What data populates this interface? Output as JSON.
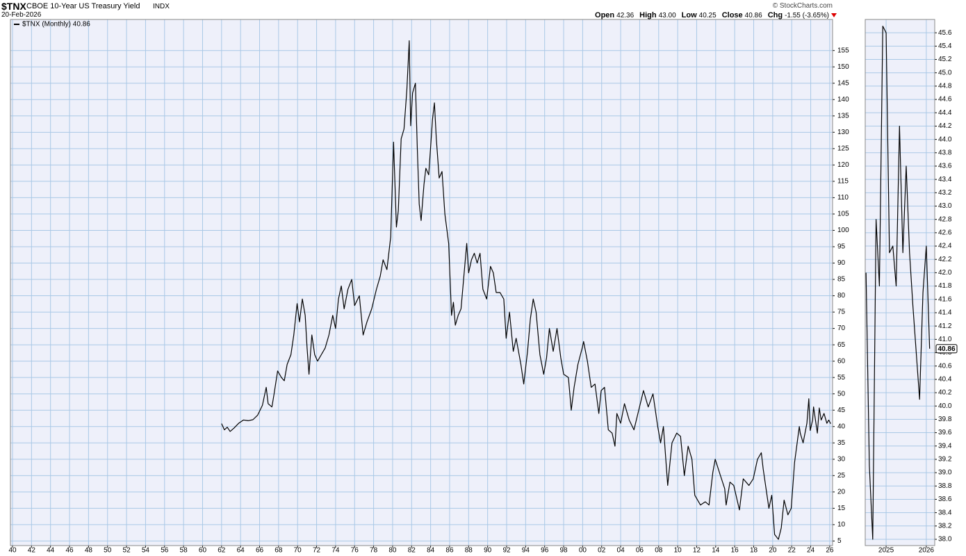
{
  "header": {
    "symbol": "$TNX",
    "name": "CBOE 10-Year US Treasury Yield",
    "exchange": "INDX",
    "date": "20-Feb-2026",
    "source": "© StockCharts.com",
    "stats": [
      {
        "label": "Open",
        "value": "42.36"
      },
      {
        "label": "High",
        "value": "43.00"
      },
      {
        "label": "Low",
        "value": "40.25"
      },
      {
        "label": "Close",
        "value": "40.86"
      },
      {
        "label": "Chg",
        "value": "-1.55 (-3.65%)"
      }
    ]
  },
  "chart_data": [
    {
      "type": "line",
      "legend": "upper left",
      "grid": true,
      "background": "#eef0fa",
      "x": [
        1962.0,
        1962.3,
        1962.6,
        1962.9,
        1963.3,
        1963.8,
        1964.3,
        1964.8,
        1965.3,
        1965.8,
        1966.3,
        1966.7,
        1966.9,
        1967.3,
        1967.5,
        1967.9,
        1968.3,
        1968.6,
        1968.9,
        1969.3,
        1969.6,
        1969.95,
        1970.2,
        1970.5,
        1970.8,
        1971.0,
        1971.2,
        1971.5,
        1971.8,
        1972.1,
        1972.5,
        1972.9,
        1973.3,
        1973.7,
        1974.0,
        1974.3,
        1974.6,
        1974.9,
        1975.3,
        1975.7,
        1976.0,
        1976.5,
        1976.9,
        1977.3,
        1977.8,
        1978.3,
        1978.7,
        1979.0,
        1979.4,
        1979.8,
        1980.1,
        1980.4,
        1980.6,
        1980.9,
        1981.2,
        1981.5,
        1981.75,
        1981.9,
        1982.1,
        1982.4,
        1982.6,
        1982.8,
        1983.0,
        1983.3,
        1983.5,
        1983.8,
        1984.2,
        1984.4,
        1984.6,
        1984.9,
        1985.2,
        1985.5,
        1985.9,
        1986.2,
        1986.4,
        1986.6,
        1986.9,
        1987.2,
        1987.5,
        1987.8,
        1988.0,
        1988.3,
        1988.6,
        1988.9,
        1989.2,
        1989.5,
        1989.9,
        1990.3,
        1990.6,
        1990.9,
        1991.3,
        1991.7,
        1991.95,
        1992.3,
        1992.7,
        1993.0,
        1993.5,
        1993.8,
        1994.2,
        1994.5,
        1994.8,
        1995.1,
        1995.5,
        1995.9,
        1996.2,
        1996.5,
        1996.9,
        1997.3,
        1997.7,
        1998.0,
        1998.5,
        1998.8,
        1999.1,
        1999.5,
        1999.95,
        2000.1,
        2000.5,
        2000.9,
        2001.3,
        2001.7,
        2001.95,
        2002.3,
        2002.7,
        2003.1,
        2003.4,
        2003.6,
        2004.0,
        2004.4,
        2004.9,
        2005.4,
        2005.9,
        2006.4,
        2006.9,
        2007.4,
        2007.9,
        2008.2,
        2008.5,
        2008.95,
        2009.4,
        2009.9,
        2010.3,
        2010.7,
        2011.1,
        2011.5,
        2011.8,
        2012.4,
        2012.9,
        2013.3,
        2013.7,
        2013.95,
        2014.5,
        2014.95,
        2015.1,
        2015.5,
        2015.9,
        2016.5,
        2016.9,
        2017.5,
        2017.95,
        2018.4,
        2018.8,
        2019.0,
        2019.6,
        2019.9,
        2020.2,
        2020.6,
        2020.9,
        2021.2,
        2021.6,
        2021.95,
        2022.3,
        2022.8,
        2022.9,
        2023.2,
        2023.6,
        2023.8,
        2023.95,
        2024.2,
        2024.3,
        2024.7,
        2024.9,
        2025.1,
        2025.4,
        2025.7,
        2025.9,
        2026.1
      ],
      "series": [
        {
          "name": "$TNX (Monthly) 40.86",
          "color": "#000000",
          "values": [
            40.9,
            39,
            39.8,
            38.5,
            39.5,
            41,
            42,
            41.8,
            42.1,
            43.5,
            46.5,
            52,
            47,
            46,
            49.5,
            57,
            55,
            54,
            59,
            62,
            68,
            77.6,
            72,
            79,
            74,
            64,
            56,
            68,
            62,
            60,
            62,
            64,
            68,
            74,
            70,
            79,
            83,
            76,
            82,
            85,
            77,
            80,
            68,
            72,
            76,
            82,
            86,
            91,
            88,
            98,
            127,
            101,
            106,
            128,
            131,
            143,
            158,
            132,
            142,
            145,
            125,
            108,
            103,
            114,
            119,
            117,
            134,
            139,
            128,
            116,
            118,
            105,
            96,
            74,
            78,
            71,
            74,
            76,
            86,
            96,
            87,
            91,
            93,
            90,
            93,
            82,
            79,
            89,
            87,
            81,
            81,
            79,
            67,
            75,
            63,
            67,
            59,
            53,
            63,
            73,
            79,
            75,
            62,
            56,
            61,
            70,
            63,
            70,
            61,
            56,
            55,
            45,
            52,
            59,
            64,
            66,
            60,
            52,
            53,
            44,
            51,
            52,
            39,
            38,
            34,
            44,
            41,
            47,
            42,
            39,
            45,
            51,
            46,
            50,
            40,
            35,
            40,
            22,
            35,
            38,
            37,
            25,
            34,
            30,
            19,
            16,
            17,
            16,
            26,
            30,
            25,
            21,
            16,
            23,
            22,
            14.5,
            24,
            22,
            24,
            30,
            32,
            27,
            15,
            19,
            7,
            5.5,
            9,
            17.5,
            13,
            15,
            29,
            40,
            38,
            35,
            41,
            48.5,
            38.8,
            42,
            46,
            38,
            45.7,
            42,
            44,
            41,
            42,
            40.86
          ]
        }
      ],
      "xlim": [
        1939.78,
        2026.3
      ],
      "ylim": [
        3.6,
        164.5
      ],
      "xticks": [
        {
          "value": 1940,
          "label": "40"
        },
        {
          "value": 1942,
          "label": "42"
        },
        {
          "value": 1944,
          "label": "44"
        },
        {
          "value": 1946,
          "label": "46"
        },
        {
          "value": 1948,
          "label": "48"
        },
        {
          "value": 1950,
          "label": "50"
        },
        {
          "value": 1952,
          "label": "52"
        },
        {
          "value": 1954,
          "label": "54"
        },
        {
          "value": 1956,
          "label": "56"
        },
        {
          "value": 1958,
          "label": "58"
        },
        {
          "value": 1960,
          "label": "60"
        },
        {
          "value": 1962,
          "label": "62"
        },
        {
          "value": 1964,
          "label": "64"
        },
        {
          "value": 1966,
          "label": "66"
        },
        {
          "value": 1968,
          "label": "68"
        },
        {
          "value": 1970,
          "label": "70"
        },
        {
          "value": 1972,
          "label": "72"
        },
        {
          "value": 1974,
          "label": "74"
        },
        {
          "value": 1976,
          "label": "76"
        },
        {
          "value": 1978,
          "label": "78"
        },
        {
          "value": 1980,
          "label": "80"
        },
        {
          "value": 1982,
          "label": "82"
        },
        {
          "value": 1984,
          "label": "84"
        },
        {
          "value": 1986,
          "label": "86"
        },
        {
          "value": 1988,
          "label": "88"
        },
        {
          "value": 1990,
          "label": "90"
        },
        {
          "value": 1992,
          "label": "92"
        },
        {
          "value": 1994,
          "label": "94"
        },
        {
          "value": 1996,
          "label": "96"
        },
        {
          "value": 1998,
          "label": "98"
        },
        {
          "value": 2000,
          "label": "00"
        },
        {
          "value": 2002,
          "label": "02"
        },
        {
          "value": 2004,
          "label": "04"
        },
        {
          "value": 2006,
          "label": "06"
        },
        {
          "value": 2008,
          "label": "08"
        },
        {
          "value": 2010,
          "label": "10"
        },
        {
          "value": 2012,
          "label": "12"
        },
        {
          "value": 2014,
          "label": "14"
        },
        {
          "value": 2016,
          "label": "16"
        },
        {
          "value": 2018,
          "label": "18"
        },
        {
          "value": 2020,
          "label": "20"
        },
        {
          "value": 2022,
          "label": "22"
        },
        {
          "value": 2024,
          "label": "24"
        },
        {
          "value": 2026,
          "label": "26"
        }
      ],
      "yticks": [
        5,
        10,
        15,
        20,
        25,
        30,
        35,
        40,
        45,
        50,
        55,
        60,
        65,
        70,
        75,
        80,
        85,
        90,
        95,
        100,
        105,
        110,
        115,
        120,
        125,
        130,
        135,
        140,
        145,
        150,
        155
      ]
    },
    {
      "type": "line",
      "grid": true,
      "background": "#eef0fa",
      "last_value_label": true,
      "x": [
        2024.5,
        2024.583,
        2024.667,
        2024.75,
        2024.833,
        2024.917,
        2025.0,
        2025.083,
        2025.167,
        2025.25,
        2025.333,
        2025.417,
        2025.5,
        2025.583,
        2025.667,
        2025.75,
        2025.833,
        2025.917,
        2026.0,
        2026.083
      ],
      "series": [
        {
          "color": "#000000",
          "values": [
            42.0,
            39.1,
            38.0,
            42.8,
            41.8,
            45.7,
            45.6,
            42.3,
            42.4,
            41.8,
            44.2,
            42.3,
            43.6,
            42.3,
            41.5,
            40.8,
            40.1,
            41.7,
            42.4,
            40.86
          ]
        }
      ],
      "xlim": [
        2024.48,
        2026.21
      ],
      "ylim": [
        37.906,
        45.8
      ],
      "xticks": [
        2025,
        2026
      ],
      "yticks": [
        {
          "value": 38.0,
          "label": "38.0"
        },
        {
          "value": 38.2,
          "label": "38.2"
        },
        {
          "value": 38.4,
          "label": "38.4"
        },
        {
          "value": 38.6,
          "label": "38.6"
        },
        {
          "value": 38.8,
          "label": "38.8"
        },
        {
          "value": 39.0,
          "label": "39.0"
        },
        {
          "value": 39.2,
          "label": "39.2"
        },
        {
          "value": 39.4,
          "label": "39.4"
        },
        {
          "value": 39.6,
          "label": "39.6"
        },
        {
          "value": 39.8,
          "label": "39.8"
        },
        {
          "value": 40.0,
          "label": "40.0"
        },
        {
          "value": 40.2,
          "label": "40.2"
        },
        {
          "value": 40.4,
          "label": "40.4"
        },
        {
          "value": 40.6,
          "label": "40.6"
        },
        {
          "value": 40.8,
          "label": "40.8"
        },
        {
          "value": 41.0,
          "label": "41.0"
        },
        {
          "value": 41.2,
          "label": "41.2"
        },
        {
          "value": 41.4,
          "label": "41.4"
        },
        {
          "value": 41.6,
          "label": "41.6"
        },
        {
          "value": 41.8,
          "label": "41.8"
        },
        {
          "value": 42.0,
          "label": "42.0"
        },
        {
          "value": 42.2,
          "label": "42.2"
        },
        {
          "value": 42.4,
          "label": "42.4"
        },
        {
          "value": 42.6,
          "label": "42.6"
        },
        {
          "value": 42.8,
          "label": "42.8"
        },
        {
          "value": 43.0,
          "label": "43.0"
        },
        {
          "value": 43.2,
          "label": "43.2"
        },
        {
          "value": 43.4,
          "label": "43.4"
        },
        {
          "value": 43.6,
          "label": "43.6"
        },
        {
          "value": 43.8,
          "label": "43.8"
        },
        {
          "value": 44.0,
          "label": "44.0"
        },
        {
          "value": 44.2,
          "label": "44.2"
        },
        {
          "value": 44.4,
          "label": "44.4"
        },
        {
          "value": 44.6,
          "label": "44.6"
        },
        {
          "value": 44.8,
          "label": "44.8"
        },
        {
          "value": 45.0,
          "label": "45.0"
        },
        {
          "value": 45.2,
          "label": "45.2"
        },
        {
          "value": 45.4,
          "label": "45.4"
        },
        {
          "value": 45.6,
          "label": "45.6"
        }
      ]
    }
  ]
}
